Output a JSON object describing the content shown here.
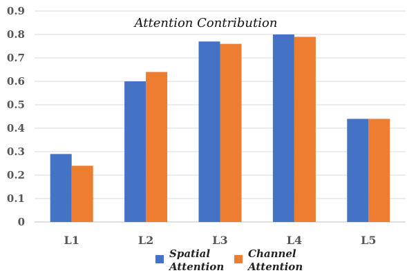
{
  "chart_data": {
    "type": "bar",
    "title": "Attention Contribution",
    "xlabel": "",
    "ylabel": "",
    "categories": [
      "L1",
      "L2",
      "L3",
      "L4",
      "L5"
    ],
    "ylim": [
      0,
      0.9
    ],
    "yticks": [
      "0",
      "0.1",
      "0.2",
      "0.3",
      "0.4",
      "0.5",
      "0.6",
      "0.7",
      "0.8",
      "0.9"
    ],
    "grid": true,
    "legend_position": "bottom",
    "series": [
      {
        "name": "Spatial Attention",
        "legend_lines": [
          "Spatial",
          "Attention"
        ],
        "color": "#4472C4",
        "values": [
          0.29,
          0.6,
          0.77,
          0.8,
          0.44
        ]
      },
      {
        "name": "Channel Attention",
        "legend_lines": [
          "Channel",
          "Attention"
        ],
        "color": "#ED7D31",
        "values": [
          0.24,
          0.64,
          0.76,
          0.79,
          0.44
        ]
      }
    ]
  },
  "colors": {
    "grid": "#D9D9D9",
    "axis": "#BFBFBF"
  }
}
